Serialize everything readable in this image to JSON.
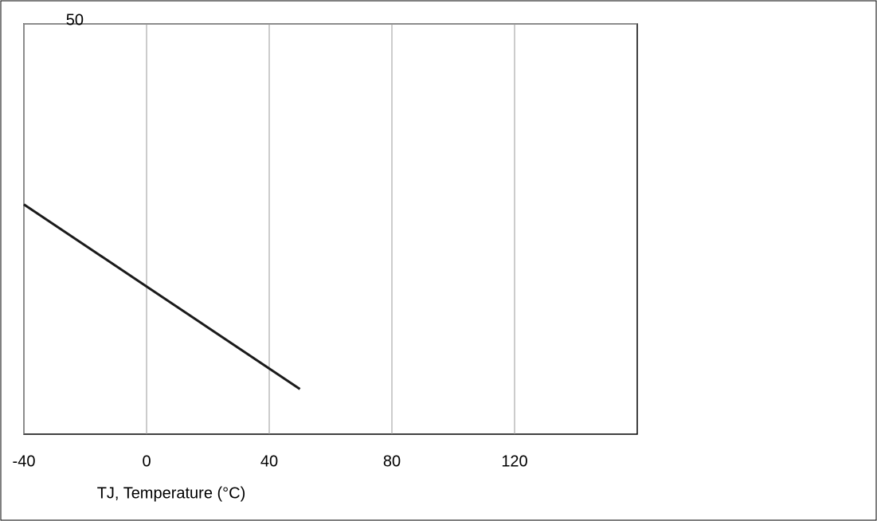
{
  "chart_data": {
    "type": "line",
    "x_label": "TJ, Temperature (°C)",
    "x": [
      -40,
      0,
      40,
      50
    ],
    "series": [
      {
        "color": "#1a1a1a",
        "values": [
          28,
          18,
          8,
          5.5
        ]
      }
    ],
    "xlim": [
      -40,
      160
    ],
    "xticks": [
      -40,
      0,
      40,
      80,
      120
    ],
    "ylim": [
      0,
      50
    ],
    "yticks": [
      50
    ],
    "grid": true
  }
}
